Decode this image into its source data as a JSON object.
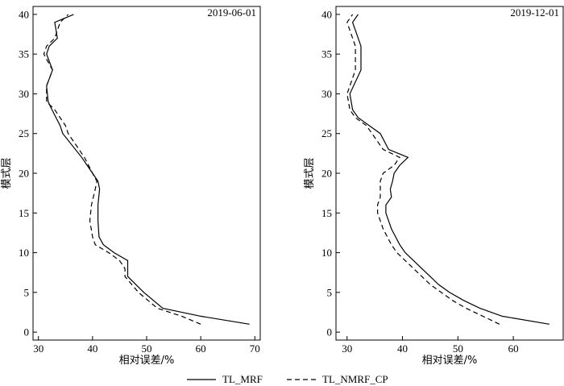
{
  "chart_data": [
    {
      "type": "line",
      "title": "2019-06-01",
      "xlabel": "相对误差/%",
      "ylabel": "模式层",
      "xlim": [
        29,
        71
      ],
      "ylim": [
        -1,
        41
      ],
      "xticks": [
        "30",
        "40",
        "50",
        "60",
        "70"
      ],
      "yticks": [
        "0",
        "5",
        "10",
        "15",
        "20",
        "25",
        "30",
        "35",
        "40"
      ],
      "series": [
        {
          "name": "TL_MRF",
          "style": "solid",
          "y": [
            1,
            2,
            3,
            5,
            7,
            8,
            9,
            10,
            11,
            12,
            14,
            16,
            18,
            19,
            20,
            22,
            25,
            26,
            28,
            29,
            31,
            33,
            35,
            36,
            37,
            39,
            40
          ],
          "x": [
            69,
            60,
            53,
            49.5,
            46.5,
            46.5,
            46.5,
            44,
            42,
            41.2,
            41,
            41,
            41.3,
            41,
            40,
            38,
            34.5,
            34,
            32.5,
            31.8,
            31.5,
            32.6,
            31.5,
            32,
            33.5,
            33,
            36.5
          ]
        },
        {
          "name": "TL_NMRF_CP",
          "style": "dashed",
          "y": [
            1,
            2,
            3,
            5,
            7,
            8,
            9,
            10,
            11,
            12,
            14,
            16,
            18,
            19,
            20,
            22,
            25,
            26,
            28,
            29,
            31,
            33,
            35,
            36,
            37,
            39,
            40
          ],
          "x": [
            60,
            56.5,
            52,
            48.5,
            46,
            46,
            45,
            43,
            40.5,
            40,
            39.5,
            39.8,
            40.5,
            40.8,
            40,
            38.5,
            35.5,
            35,
            33,
            31.5,
            31.5,
            32.6,
            31,
            31.5,
            33,
            34,
            35.5
          ]
        }
      ]
    },
    {
      "type": "line",
      "title": "2019-12-01",
      "xlabel": "相对误差/%",
      "ylabel": "模式层",
      "xlim": [
        28,
        69
      ],
      "ylim": [
        -1,
        41
      ],
      "xticks": [
        "30",
        "40",
        "50",
        "60"
      ],
      "yticks": [
        "0",
        "5",
        "10",
        "15",
        "20",
        "25",
        "30",
        "35",
        "40"
      ],
      "series": [
        {
          "name": "TL_MRF",
          "style": "solid",
          "y": [
            1,
            2,
            3,
            4,
            5,
            6,
            7,
            8,
            9,
            10,
            11,
            13,
            15,
            16,
            17,
            18,
            19,
            20,
            21,
            22,
            23,
            25,
            26,
            27,
            28,
            30,
            33,
            35,
            36,
            38,
            39,
            40
          ],
          "x": [
            66.5,
            58,
            54,
            51,
            48.5,
            46.5,
            45,
            43.5,
            42,
            40.5,
            39.5,
            38,
            37,
            37,
            38,
            37.8,
            38.2,
            38.5,
            39.5,
            41,
            37.5,
            36,
            34,
            32,
            31,
            30.5,
            32.5,
            32.5,
            32.5,
            31.5,
            31,
            32
          ]
        },
        {
          "name": "TL_NMRF_CP",
          "style": "dashed",
          "y": [
            1,
            2,
            3,
            4,
            5,
            6,
            7,
            8,
            9,
            10,
            11,
            13,
            15,
            16,
            17,
            18,
            19,
            20,
            21,
            22,
            23,
            25,
            26,
            27,
            28,
            30,
            33,
            35,
            36,
            38,
            39,
            40
          ],
          "x": [
            57.5,
            54.5,
            51.5,
            49,
            47,
            45,
            43.5,
            42,
            40.5,
            39,
            38,
            36.5,
            35.5,
            35.5,
            36,
            36,
            36,
            36.5,
            38.5,
            39.5,
            36.5,
            34.5,
            33.5,
            31.5,
            30.5,
            30,
            31.5,
            31.5,
            31.5,
            30.5,
            30,
            31
          ]
        }
      ]
    }
  ],
  "legend": [
    {
      "label": "TL_MRF",
      "style": "solid"
    },
    {
      "label": "TL_NMRF_CP",
      "style": "dashed"
    }
  ]
}
